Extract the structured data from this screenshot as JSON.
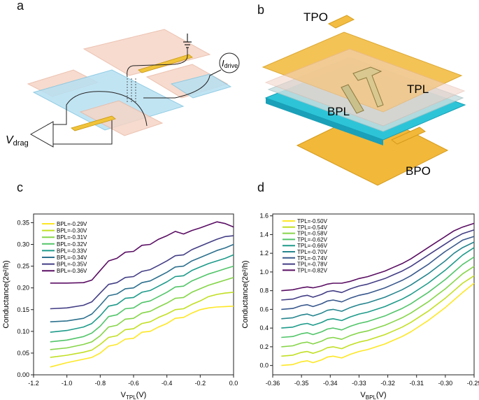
{
  "panels": {
    "a": "a",
    "b": "b",
    "c": "c",
    "d": "d"
  },
  "schematic_a": {
    "vdrag_label": "V",
    "vdrag_sub": "drag",
    "idrive_label": "I",
    "idrive_sub": "drive"
  },
  "schematic_b": {
    "tpo": "TPO",
    "tpl": "TPL",
    "bpl": "BPL",
    "bpo": "BPO"
  },
  "colors": {
    "c_seq": [
      "#fde725",
      "#c2df23",
      "#86d549",
      "#52c569",
      "#2ab07f",
      "#1e9b8a",
      "#25858e",
      "#2d708e",
      "#38588c",
      "#433e85",
      "#482173",
      "#440154"
    ]
  },
  "chart_data": [
    {
      "type": "line",
      "title": "c",
      "xlabel": "V",
      "xlabel_sub": "TPL",
      "xlabel_unit": "(V)",
      "ylabel": "Conductance(2e²/h)",
      "xlim": [
        -1.2,
        0.0
      ],
      "ylim": [
        0.0,
        0.37
      ],
      "xticks": [
        -1.2,
        -1.0,
        -0.8,
        -0.6,
        -0.4,
        -0.2,
        0.0
      ],
      "xtick_labels": [
        "-1.2",
        "-1.0",
        "-0.8",
        "-0.6",
        "-0.4",
        "-0.2",
        "0.0"
      ],
      "yticks": [
        0.0,
        0.05,
        0.1,
        0.15,
        0.2,
        0.25,
        0.3,
        0.35
      ],
      "ytick_labels": [
        "0.00",
        "0.05",
        "0.10",
        "0.15",
        "0.20",
        "0.25",
        "0.30",
        "0.35"
      ],
      "legend_position": "top-left",
      "x": [
        -1.1,
        -1.0,
        -0.9,
        -0.85,
        -0.8,
        -0.75,
        -0.7,
        -0.65,
        -0.6,
        -0.55,
        -0.5,
        -0.45,
        -0.4,
        -0.35,
        -0.3,
        -0.25,
        -0.2,
        -0.15,
        -0.1,
        -0.05,
        0.0
      ],
      "series": [
        {
          "name": "BPL=-0.29V",
          "color": "#fde725",
          "values": [
            0.018,
            0.028,
            0.036,
            0.04,
            0.05,
            0.066,
            0.07,
            0.082,
            0.084,
            0.098,
            0.1,
            0.11,
            0.118,
            0.13,
            0.132,
            0.142,
            0.15,
            0.154,
            0.156,
            0.157,
            0.158
          ]
        },
        {
          "name": "BPL=-0.30V",
          "color": "#c2df23",
          "values": [
            0.04,
            0.045,
            0.052,
            0.057,
            0.07,
            0.086,
            0.09,
            0.104,
            0.106,
            0.118,
            0.122,
            0.132,
            0.14,
            0.15,
            0.152,
            0.162,
            0.17,
            0.18,
            0.185,
            0.188,
            0.19
          ]
        },
        {
          "name": "BPL=-0.31V",
          "color": "#86d549",
          "values": [
            0.058,
            0.062,
            0.07,
            0.076,
            0.09,
            0.11,
            0.114,
            0.128,
            0.13,
            0.142,
            0.146,
            0.156,
            0.165,
            0.176,
            0.178,
            0.19,
            0.198,
            0.206,
            0.212,
            0.218,
            0.224
          ]
        },
        {
          "name": "BPL=-0.32V",
          "color": "#52c569",
          "values": [
            0.076,
            0.08,
            0.088,
            0.096,
            0.112,
            0.134,
            0.138,
            0.152,
            0.154,
            0.166,
            0.17,
            0.18,
            0.19,
            0.202,
            0.204,
            0.216,
            0.224,
            0.232,
            0.238,
            0.244,
            0.25
          ]
        },
        {
          "name": "BPL=-0.33V",
          "color": "#1e9b8a",
          "values": [
            0.098,
            0.102,
            0.11,
            0.118,
            0.136,
            0.158,
            0.162,
            0.176,
            0.178,
            0.19,
            0.194,
            0.204,
            0.214,
            0.226,
            0.228,
            0.24,
            0.248,
            0.256,
            0.262,
            0.268,
            0.276
          ]
        },
        {
          "name": "BPL=-0.34V",
          "color": "#2d708e",
          "values": [
            0.122,
            0.124,
            0.13,
            0.14,
            0.16,
            0.182,
            0.186,
            0.198,
            0.2,
            0.212,
            0.216,
            0.226,
            0.236,
            0.248,
            0.25,
            0.262,
            0.27,
            0.278,
            0.286,
            0.292,
            0.3
          ]
        },
        {
          "name": "BPL=-0.35V",
          "color": "#433e85",
          "values": [
            0.152,
            0.154,
            0.16,
            0.168,
            0.188,
            0.208,
            0.212,
            0.224,
            0.226,
            0.238,
            0.242,
            0.252,
            0.262,
            0.274,
            0.276,
            0.288,
            0.296,
            0.304,
            0.312,
            0.318,
            0.32
          ]
        },
        {
          "name": "BPL=-0.36V",
          "color": "#5a0e63",
          "values": [
            0.211,
            0.211,
            0.212,
            0.218,
            0.24,
            0.262,
            0.268,
            0.282,
            0.284,
            0.298,
            0.3,
            0.312,
            0.32,
            0.33,
            0.324,
            0.332,
            0.338,
            0.345,
            0.352,
            0.348,
            0.34
          ]
        }
      ]
    },
    {
      "type": "line",
      "title": "d",
      "xlabel": "V",
      "xlabel_sub": "BPL",
      "xlabel_unit": "(V)",
      "ylabel": "Conductance(2e²/h)",
      "xlim": [
        -0.36,
        -0.29
      ],
      "ylim": [
        -0.1,
        1.62
      ],
      "xticks": [
        -0.36,
        -0.35,
        -0.34,
        -0.33,
        -0.32,
        -0.31,
        -0.3,
        -0.29
      ],
      "xtick_labels": [
        "-0.36",
        "-0.35",
        "-0.34",
        "-0.33",
        "-0.32",
        "-0.31",
        "-0.30",
        "-0.29"
      ],
      "yticks": [
        0.0,
        0.2,
        0.4,
        0.6,
        0.8,
        1.0,
        1.2,
        1.4,
        1.6
      ],
      "ytick_labels": [
        "0.0",
        "0.2",
        "0.4",
        "0.6",
        "0.8",
        "1.0",
        "1.2",
        "1.4",
        "1.6"
      ],
      "legend_position": "top-left",
      "x": [
        -0.357,
        -0.353,
        -0.35,
        -0.348,
        -0.346,
        -0.343,
        -0.341,
        -0.339,
        -0.336,
        -0.333,
        -0.33,
        -0.327,
        -0.324,
        -0.321,
        -0.318,
        -0.315,
        -0.312,
        -0.309,
        -0.306,
        -0.303,
        -0.3,
        -0.297,
        -0.294,
        -0.29
      ],
      "series": [
        {
          "name": "TPL=-0.50V",
          "color": "#fde725",
          "values": [
            0.0,
            0.01,
            0.04,
            0.05,
            0.03,
            0.06,
            0.09,
            0.1,
            0.08,
            0.12,
            0.15,
            0.17,
            0.2,
            0.23,
            0.27,
            0.31,
            0.36,
            0.42,
            0.48,
            0.55,
            0.62,
            0.7,
            0.78,
            0.88
          ]
        },
        {
          "name": "TPL=-0.54V",
          "color": "#c2df23",
          "values": [
            0.1,
            0.11,
            0.14,
            0.15,
            0.13,
            0.16,
            0.19,
            0.2,
            0.18,
            0.22,
            0.25,
            0.27,
            0.3,
            0.33,
            0.37,
            0.41,
            0.46,
            0.52,
            0.58,
            0.65,
            0.72,
            0.8,
            0.88,
            0.96
          ]
        },
        {
          "name": "TPL=-0.58V",
          "color": "#86d549",
          "values": [
            0.2,
            0.21,
            0.24,
            0.25,
            0.23,
            0.26,
            0.29,
            0.3,
            0.28,
            0.32,
            0.35,
            0.37,
            0.4,
            0.43,
            0.47,
            0.51,
            0.56,
            0.62,
            0.68,
            0.75,
            0.82,
            0.9,
            0.98,
            1.06
          ]
        },
        {
          "name": "TPL=-0.62V",
          "color": "#52c569",
          "values": [
            0.3,
            0.31,
            0.34,
            0.35,
            0.33,
            0.36,
            0.39,
            0.4,
            0.38,
            0.42,
            0.45,
            0.47,
            0.5,
            0.53,
            0.57,
            0.61,
            0.66,
            0.72,
            0.78,
            0.85,
            0.92,
            1.0,
            1.08,
            1.16
          ]
        },
        {
          "name": "TPL=-0.66V",
          "color": "#1e9b8a",
          "values": [
            0.4,
            0.41,
            0.44,
            0.45,
            0.43,
            0.46,
            0.49,
            0.5,
            0.48,
            0.52,
            0.55,
            0.57,
            0.6,
            0.63,
            0.67,
            0.71,
            0.76,
            0.82,
            0.88,
            0.95,
            1.02,
            1.1,
            1.18,
            1.26
          ]
        },
        {
          "name": "TPL=-0.70V",
          "color": "#25858e",
          "values": [
            0.5,
            0.51,
            0.54,
            0.55,
            0.53,
            0.56,
            0.59,
            0.6,
            0.58,
            0.62,
            0.65,
            0.67,
            0.7,
            0.73,
            0.77,
            0.81,
            0.86,
            0.92,
            0.98,
            1.05,
            1.12,
            1.2,
            1.26,
            1.32
          ]
        },
        {
          "name": "TPL=-0.74V",
          "color": "#38588c",
          "values": [
            0.6,
            0.61,
            0.64,
            0.65,
            0.63,
            0.66,
            0.69,
            0.7,
            0.68,
            0.72,
            0.75,
            0.77,
            0.8,
            0.83,
            0.87,
            0.91,
            0.96,
            1.02,
            1.08,
            1.15,
            1.22,
            1.28,
            1.34,
            1.38
          ]
        },
        {
          "name": "TPL=-0.78V",
          "color": "#433e85",
          "values": [
            0.7,
            0.71,
            0.74,
            0.75,
            0.73,
            0.76,
            0.79,
            0.8,
            0.78,
            0.82,
            0.85,
            0.87,
            0.9,
            0.93,
            0.97,
            1.01,
            1.06,
            1.12,
            1.18,
            1.24,
            1.3,
            1.36,
            1.41,
            1.45
          ]
        },
        {
          "name": "TPL=-0.82V",
          "color": "#5a0e63",
          "values": [
            0.8,
            0.81,
            0.83,
            0.84,
            0.83,
            0.85,
            0.87,
            0.88,
            0.88,
            0.9,
            0.93,
            0.95,
            0.98,
            1.01,
            1.05,
            1.09,
            1.14,
            1.2,
            1.26,
            1.32,
            1.38,
            1.44,
            1.48,
            1.52
          ]
        }
      ]
    }
  ]
}
